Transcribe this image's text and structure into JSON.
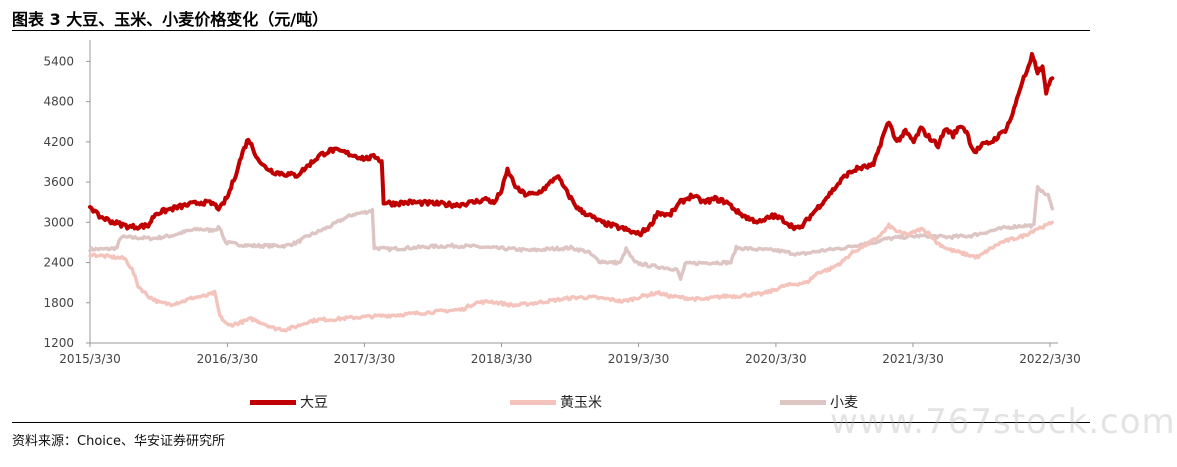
{
  "header": {
    "title": "图表 3  大豆、玉米、小麦价格变化（元/吨）"
  },
  "source": "资料来源：Choice、华安证券研究所",
  "watermark": "www.767stock.com",
  "chart_data": {
    "type": "line",
    "title": "图表 3  大豆、玉米、小麦价格变化（元/吨）",
    "xlabel": "",
    "ylabel": "",
    "ylim": [
      1200,
      5600
    ],
    "yticks": [
      1200,
      1800,
      2400,
      3000,
      3600,
      4200,
      4800,
      5400
    ],
    "xlim": [
      "2015-03-30",
      "2022-04-10"
    ],
    "xticks": [
      "2015/3/30",
      "2016/3/30",
      "2017/3/30",
      "2018/3/30",
      "2019/3/30",
      "2020/3/30",
      "2021/3/30",
      "2022/3/30"
    ],
    "grid": false,
    "legend": "bottom",
    "series": [
      {
        "name": "大豆",
        "color": "#c00000",
        "points": [
          [
            "2015-03-30",
            3250
          ],
          [
            "2015-04-20",
            3100
          ],
          [
            "2015-06-01",
            3000
          ],
          [
            "2015-07-15",
            2930
          ],
          [
            "2015-09-01",
            2950
          ],
          [
            "2015-09-20",
            3130
          ],
          [
            "2015-11-01",
            3200
          ],
          [
            "2015-12-15",
            3260
          ],
          [
            "2016-01-20",
            3300
          ],
          [
            "2016-02-20",
            3280
          ],
          [
            "2016-03-10",
            3200
          ],
          [
            "2016-04-01",
            3400
          ],
          [
            "2016-04-20",
            3700
          ],
          [
            "2016-05-10",
            4050
          ],
          [
            "2016-05-25",
            4250
          ],
          [
            "2016-06-10",
            4050
          ],
          [
            "2016-07-01",
            3850
          ],
          [
            "2016-08-01",
            3750
          ],
          [
            "2016-09-01",
            3720
          ],
          [
            "2016-10-01",
            3700
          ],
          [
            "2016-11-01",
            3850
          ],
          [
            "2016-12-01",
            4000
          ],
          [
            "2017-01-01",
            4080
          ],
          [
            "2017-02-01",
            4050
          ],
          [
            "2017-03-01",
            4000
          ],
          [
            "2017-04-01",
            3950
          ],
          [
            "2017-05-01",
            3980
          ],
          [
            "2017-05-15",
            3900
          ],
          [
            "2017-05-20",
            3300
          ],
          [
            "2017-06-15",
            3280
          ],
          [
            "2017-08-01",
            3300
          ],
          [
            "2017-10-01",
            3280
          ],
          [
            "2017-12-01",
            3260
          ],
          [
            "2018-01-15",
            3300
          ],
          [
            "2018-02-20",
            3350
          ],
          [
            "2018-03-10",
            3280
          ],
          [
            "2018-04-01",
            3500
          ],
          [
            "2018-04-15",
            3780
          ],
          [
            "2018-05-10",
            3500
          ],
          [
            "2018-06-01",
            3420
          ],
          [
            "2018-07-01",
            3420
          ],
          [
            "2018-08-01",
            3550
          ],
          [
            "2018-08-25",
            3700
          ],
          [
            "2018-09-20",
            3450
          ],
          [
            "2018-10-20",
            3200
          ],
          [
            "2018-11-20",
            3100
          ],
          [
            "2018-12-20",
            3000
          ],
          [
            "2019-01-20",
            2950
          ],
          [
            "2019-02-20",
            2900
          ],
          [
            "2019-03-15",
            2850
          ],
          [
            "2019-04-01",
            2820
          ],
          [
            "2019-05-01",
            2950
          ],
          [
            "2019-05-20",
            3150
          ],
          [
            "2019-06-20",
            3100
          ],
          [
            "2019-07-20",
            3300
          ],
          [
            "2019-08-20",
            3400
          ],
          [
            "2019-09-20",
            3300
          ],
          [
            "2019-10-20",
            3350
          ],
          [
            "2019-11-20",
            3300
          ],
          [
            "2019-12-20",
            3150
          ],
          [
            "2020-01-20",
            3050
          ],
          [
            "2020-02-20",
            3000
          ],
          [
            "2020-03-20",
            3100
          ],
          [
            "2020-04-15",
            3050
          ],
          [
            "2020-05-10",
            2950
          ],
          [
            "2020-06-01",
            2900
          ],
          [
            "2020-07-01",
            3100
          ],
          [
            "2020-08-01",
            3300
          ],
          [
            "2020-09-01",
            3500
          ],
          [
            "2020-10-01",
            3700
          ],
          [
            "2020-11-01",
            3800
          ],
          [
            "2020-12-15",
            3850
          ],
          [
            "2021-01-10",
            4300
          ],
          [
            "2021-01-25",
            4500
          ],
          [
            "2021-02-15",
            4200
          ],
          [
            "2021-03-10",
            4350
          ],
          [
            "2021-04-01",
            4200
          ],
          [
            "2021-04-20",
            4400
          ],
          [
            "2021-05-15",
            4250
          ],
          [
            "2021-06-05",
            4150
          ],
          [
            "2021-06-25",
            4400
          ],
          [
            "2021-07-15",
            4300
          ],
          [
            "2021-08-05",
            4450
          ],
          [
            "2021-08-20",
            4350
          ],
          [
            "2021-09-01",
            4150
          ],
          [
            "2021-09-10",
            4050
          ],
          [
            "2021-10-01",
            4150
          ],
          [
            "2021-10-25",
            4200
          ],
          [
            "2021-11-15",
            4300
          ],
          [
            "2021-12-01",
            4380
          ],
          [
            "2021-12-20",
            4600
          ],
          [
            "2022-01-01",
            4850
          ],
          [
            "2022-01-15",
            5100
          ],
          [
            "2022-02-01",
            5300
          ],
          [
            "2022-02-10",
            5480
          ],
          [
            "2022-02-25",
            5250
          ],
          [
            "2022-03-10",
            5300
          ],
          [
            "2022-03-20",
            4950
          ],
          [
            "2022-04-05",
            5150
          ]
        ]
      },
      {
        "name": "黄玉米",
        "color": "#f4c4bc",
        "points": [
          [
            "2015-03-30",
            2520
          ],
          [
            "2015-05-01",
            2500
          ],
          [
            "2015-06-01",
            2480
          ],
          [
            "2015-07-01",
            2460
          ],
          [
            "2015-07-20",
            2300
          ],
          [
            "2015-08-05",
            2050
          ],
          [
            "2015-09-01",
            1900
          ],
          [
            "2015-10-01",
            1800
          ],
          [
            "2015-11-01",
            1780
          ],
          [
            "2015-12-01",
            1820
          ],
          [
            "2016-01-01",
            1880
          ],
          [
            "2016-02-01",
            1900
          ],
          [
            "2016-02-25",
            1950
          ],
          [
            "2016-03-10",
            1600
          ],
          [
            "2016-04-01",
            1460
          ],
          [
            "2016-05-01",
            1500
          ],
          [
            "2016-06-01",
            1560
          ],
          [
            "2016-07-01",
            1500
          ],
          [
            "2016-08-01",
            1420
          ],
          [
            "2016-09-01",
            1400
          ],
          [
            "2016-10-01",
            1450
          ],
          [
            "2016-11-01",
            1520
          ],
          [
            "2016-12-01",
            1550
          ],
          [
            "2017-01-01",
            1550
          ],
          [
            "2017-03-01",
            1580
          ],
          [
            "2017-05-01",
            1600
          ],
          [
            "2017-07-01",
            1620
          ],
          [
            "2017-09-01",
            1650
          ],
          [
            "2017-11-01",
            1680
          ],
          [
            "2017-12-15",
            1700
          ],
          [
            "2018-01-20",
            1800
          ],
          [
            "2018-03-01",
            1820
          ],
          [
            "2018-05-01",
            1760
          ],
          [
            "2018-07-01",
            1800
          ],
          [
            "2018-09-01",
            1850
          ],
          [
            "2018-10-15",
            1880
          ],
          [
            "2018-12-01",
            1880
          ],
          [
            "2019-01-15",
            1850
          ],
          [
            "2019-02-15",
            1820
          ],
          [
            "2019-03-10",
            1850
          ],
          [
            "2019-04-10",
            1900
          ],
          [
            "2019-05-20",
            1950
          ],
          [
            "2019-06-20",
            1900
          ],
          [
            "2019-07-20",
            1880
          ],
          [
            "2019-08-20",
            1860
          ],
          [
            "2019-09-20",
            1850
          ],
          [
            "2019-10-20",
            1880
          ],
          [
            "2019-11-20",
            1900
          ],
          [
            "2019-12-20",
            1900
          ],
          [
            "2020-01-20",
            1920
          ],
          [
            "2020-02-20",
            1930
          ],
          [
            "2020-03-20",
            1980
          ],
          [
            "2020-04-20",
            2050
          ],
          [
            "2020-05-20",
            2080
          ],
          [
            "2020-06-20",
            2100
          ],
          [
            "2020-07-20",
            2250
          ],
          [
            "2020-08-20",
            2300
          ],
          [
            "2020-09-20",
            2400
          ],
          [
            "2020-10-20",
            2550
          ],
          [
            "2020-11-20",
            2650
          ],
          [
            "2020-12-20",
            2750
          ],
          [
            "2021-01-10",
            2850
          ],
          [
            "2021-01-25",
            2950
          ],
          [
            "2021-02-20",
            2850
          ],
          [
            "2021-03-20",
            2820
          ],
          [
            "2021-04-20",
            2900
          ],
          [
            "2021-05-10",
            2850
          ],
          [
            "2021-06-01",
            2700
          ],
          [
            "2021-07-01",
            2600
          ],
          [
            "2021-08-01",
            2550
          ],
          [
            "2021-09-01",
            2500
          ],
          [
            "2021-09-20",
            2480
          ],
          [
            "2021-10-20",
            2600
          ],
          [
            "2021-11-20",
            2700
          ],
          [
            "2021-12-20",
            2750
          ],
          [
            "2022-01-20",
            2800
          ],
          [
            "2022-02-20",
            2900
          ],
          [
            "2022-03-20",
            2950
          ],
          [
            "2022-04-05",
            3000
          ]
        ]
      },
      {
        "name": "小麦",
        "color": "#ddc5c4",
        "points": [
          [
            "2015-03-30",
            2600
          ],
          [
            "2015-05-15",
            2600
          ],
          [
            "2015-06-10",
            2620
          ],
          [
            "2015-06-20",
            2780
          ],
          [
            "2015-08-01",
            2770
          ],
          [
            "2015-09-15",
            2760
          ],
          [
            "2015-11-01",
            2800
          ],
          [
            "2015-12-15",
            2870
          ],
          [
            "2016-01-15",
            2900
          ],
          [
            "2016-02-15",
            2880
          ],
          [
            "2016-03-10",
            2920
          ],
          [
            "2016-03-25",
            2700
          ],
          [
            "2016-04-15",
            2680
          ],
          [
            "2016-06-01",
            2650
          ],
          [
            "2016-07-15",
            2650
          ],
          [
            "2016-09-01",
            2650
          ],
          [
            "2016-10-01",
            2700
          ],
          [
            "2016-11-01",
            2800
          ],
          [
            "2016-12-01",
            2870
          ],
          [
            "2017-01-01",
            2950
          ],
          [
            "2017-02-01",
            3050
          ],
          [
            "2017-03-01",
            3120
          ],
          [
            "2017-04-01",
            3150
          ],
          [
            "2017-04-20",
            3180
          ],
          [
            "2017-04-25",
            2620
          ],
          [
            "2017-06-01",
            2600
          ],
          [
            "2017-08-01",
            2620
          ],
          [
            "2017-10-01",
            2640
          ],
          [
            "2017-12-01",
            2650
          ],
          [
            "2018-01-15",
            2640
          ],
          [
            "2018-03-01",
            2620
          ],
          [
            "2018-05-01",
            2600
          ],
          [
            "2018-06-15",
            2580
          ],
          [
            "2018-08-01",
            2600
          ],
          [
            "2018-10-01",
            2620
          ],
          [
            "2018-11-15",
            2560
          ],
          [
            "2018-12-15",
            2420
          ],
          [
            "2019-01-15",
            2400
          ],
          [
            "2019-02-10",
            2400
          ],
          [
            "2019-02-25",
            2600
          ],
          [
            "2019-03-20",
            2400
          ],
          [
            "2019-05-01",
            2350
          ],
          [
            "2019-06-15",
            2320
          ],
          [
            "2019-07-10",
            2300
          ],
          [
            "2019-07-20",
            2150
          ],
          [
            "2019-08-01",
            2380
          ],
          [
            "2019-10-01",
            2400
          ],
          [
            "2019-12-01",
            2400
          ],
          [
            "2019-12-15",
            2620
          ],
          [
            "2020-02-01",
            2600
          ],
          [
            "2020-04-01",
            2580
          ],
          [
            "2020-06-01",
            2520
          ],
          [
            "2020-08-01",
            2580
          ],
          [
            "2020-10-01",
            2620
          ],
          [
            "2020-11-15",
            2680
          ],
          [
            "2020-12-15",
            2700
          ],
          [
            "2021-01-15",
            2750
          ],
          [
            "2021-03-01",
            2780
          ],
          [
            "2021-05-01",
            2800
          ],
          [
            "2021-07-01",
            2780
          ],
          [
            "2021-09-01",
            2800
          ],
          [
            "2021-10-15",
            2860
          ],
          [
            "2021-12-01",
            2920
          ],
          [
            "2022-01-15",
            2950
          ],
          [
            "2022-02-15",
            2950
          ],
          [
            "2022-02-25",
            3550
          ],
          [
            "2022-03-10",
            3450
          ],
          [
            "2022-03-25",
            3400
          ],
          [
            "2022-04-05",
            3200
          ]
        ]
      }
    ]
  }
}
